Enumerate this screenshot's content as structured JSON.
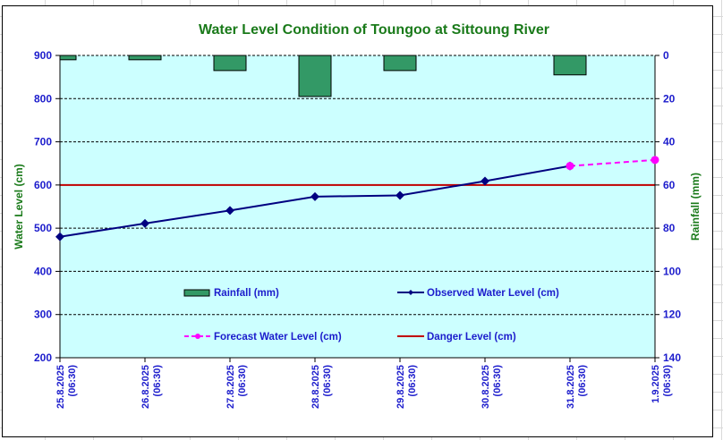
{
  "chart_data": {
    "type": "line",
    "title": "Water Level Condition of Toungoo at  Sittoung River",
    "ylabel": "Water Level (cm)",
    "y2label": "Rainfall (mm)",
    "ylim": [
      200,
      900
    ],
    "y_ticks": [
      200,
      300,
      400,
      500,
      600,
      700,
      800,
      900
    ],
    "y2lim": [
      0,
      140
    ],
    "y2_ticks": [
      0,
      20,
      40,
      60,
      80,
      100,
      120,
      140
    ],
    "y2_inverted": true,
    "grid": true,
    "categories": [
      [
        "25.8.2025",
        "(06:30)"
      ],
      [
        "26.8.2025",
        "(06:30)"
      ],
      [
        "27.8.2025",
        "(06:30)"
      ],
      [
        "28.8.2025",
        "(06:30)"
      ],
      [
        "29.8.2025",
        "(06:30)"
      ],
      [
        "30.8.2025",
        "(06:30)"
      ],
      [
        "31.8.2025",
        "(06:30)"
      ],
      [
        "1.9.2025",
        "(06:30)"
      ]
    ],
    "series": [
      {
        "name": "Rainfall (mm)",
        "type": "bar",
        "axis": "right",
        "color": "#339966",
        "values": [
          2,
          2,
          7,
          19,
          7,
          0,
          9,
          null
        ]
      },
      {
        "name": "Observed Water Level (cm)",
        "type": "line",
        "axis": "left",
        "color": "#000080",
        "values": [
          480,
          511,
          541,
          573,
          576,
          609,
          644,
          null
        ]
      },
      {
        "name": "Forecast Water Level (cm)",
        "type": "line",
        "axis": "left",
        "color": "#ff00ff",
        "dashed": true,
        "values": [
          null,
          null,
          null,
          null,
          null,
          null,
          644,
          658
        ]
      },
      {
        "name": "Danger Level (cm)",
        "type": "line",
        "axis": "left",
        "color": "#c00000",
        "values": [
          600,
          600,
          600,
          600,
          600,
          600,
          600,
          600
        ]
      }
    ],
    "legend": [
      "Rainfall (mm)",
      "Observed Water Level (cm)",
      "Forecast Water Level (cm)",
      "Danger Level (cm)"
    ],
    "legend_position": "inside-bottom-center",
    "plot_background": "#ccffff"
  }
}
